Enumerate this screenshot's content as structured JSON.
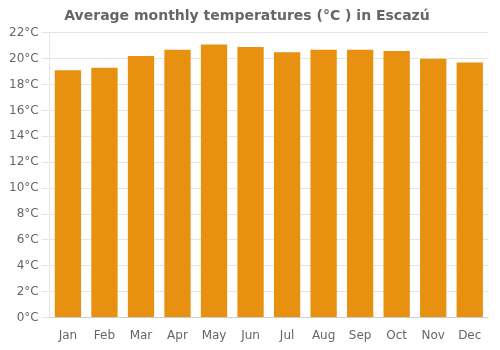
{
  "chart_data": {
    "type": "bar",
    "title": "Average monthly temperatures (°C ) in Escazú",
    "categories": [
      "Jan",
      "Feb",
      "Mar",
      "Apr",
      "May",
      "Jun",
      "Jul",
      "Aug",
      "Sep",
      "Oct",
      "Nov",
      "Dec"
    ],
    "values": [
      19.1,
      19.3,
      20.2,
      20.7,
      21.1,
      20.9,
      20.5,
      20.7,
      20.7,
      20.6,
      20.0,
      19.7
    ],
    "color": "#E89010",
    "ylim": [
      0,
      22
    ],
    "yticks": [
      {
        "value": 0,
        "label": "0°C"
      },
      {
        "value": 2,
        "label": "2°C"
      },
      {
        "value": 4,
        "label": "4°C"
      },
      {
        "value": 6,
        "label": "6°C"
      },
      {
        "value": 8,
        "label": "8°C"
      },
      {
        "value": 10,
        "label": "10°C"
      },
      {
        "value": 12,
        "label": "12°C"
      },
      {
        "value": 14,
        "label": "14°C"
      },
      {
        "value": 16,
        "label": "16°C"
      },
      {
        "value": 18,
        "label": "18°C"
      },
      {
        "value": 20,
        "label": "20°C"
      },
      {
        "value": 22,
        "label": "22°C"
      }
    ],
    "grid": true
  }
}
